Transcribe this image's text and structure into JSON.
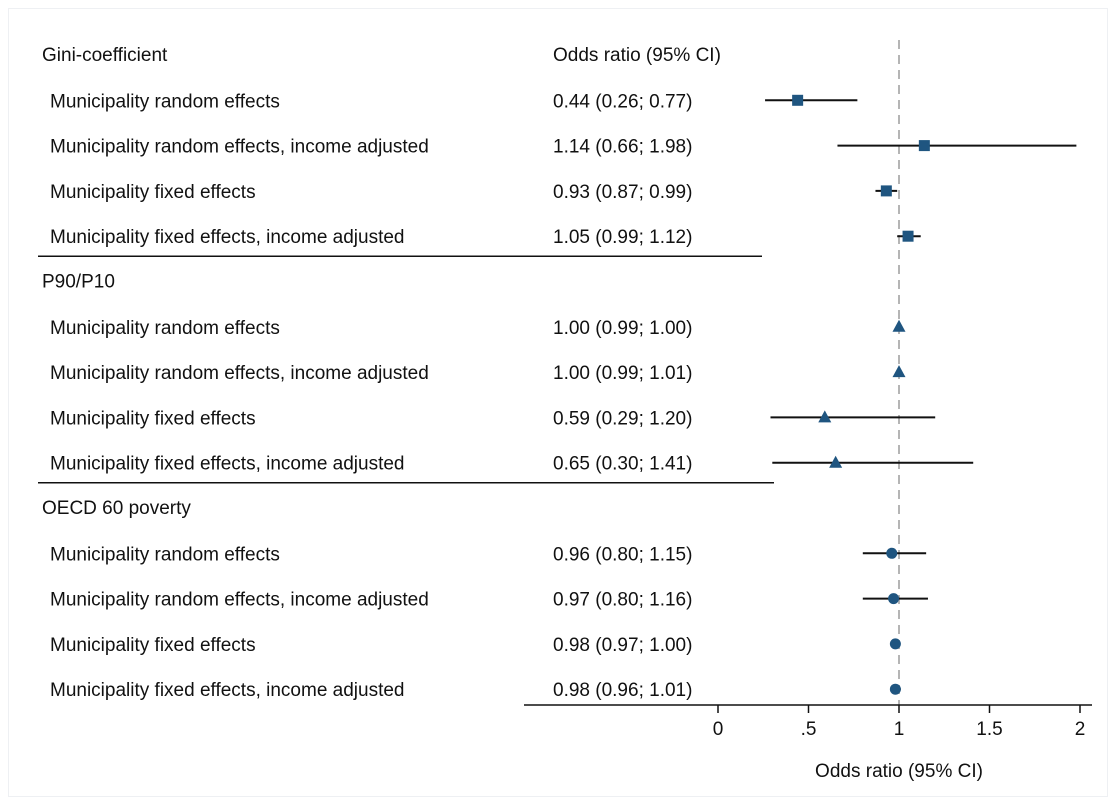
{
  "chart_data": {
    "type": "forest",
    "col_header": "Odds ratio (95% CI)",
    "xlabel": "Odds ratio (95% CI)",
    "xlim": [
      0,
      2
    ],
    "ticks": [
      0,
      0.5,
      1,
      1.5,
      2
    ],
    "tick_labels": [
      "0",
      ".5",
      "1",
      "1.5",
      "2"
    ],
    "reference_line": 1,
    "marker_color": "#1f5580",
    "groups": [
      {
        "label": "Gini-coefficient",
        "marker": "square",
        "rows": [
          {
            "label": "Municipality random effects",
            "or": 0.44,
            "lo": 0.26,
            "hi": 0.77,
            "text": "0.44 (0.26; 0.77)"
          },
          {
            "label": "Municipality random effects, income adjusted",
            "or": 1.14,
            "lo": 0.66,
            "hi": 1.98,
            "text": "1.14 (0.66; 1.98)"
          },
          {
            "label": "Municipality fixed effects",
            "or": 0.93,
            "lo": 0.87,
            "hi": 0.99,
            "text": "0.93 (0.87; 0.99)"
          },
          {
            "label": "Municipality fixed effects, income adjusted",
            "or": 1.05,
            "lo": 0.99,
            "hi": 1.12,
            "text": "1.05 (0.99; 1.12)"
          }
        ]
      },
      {
        "label": "P90/P10",
        "marker": "triangle",
        "rows": [
          {
            "label": "Municipality random effects",
            "or": 1.0,
            "lo": 0.99,
            "hi": 1.0,
            "text": "1.00 (0.99; 1.00)"
          },
          {
            "label": "Municipality random effects, income adjusted",
            "or": 1.0,
            "lo": 0.99,
            "hi": 1.01,
            "text": "1.00 (0.99; 1.01)"
          },
          {
            "label": "Municipality fixed effects",
            "or": 0.59,
            "lo": 0.29,
            "hi": 1.2,
            "text": "0.59 (0.29; 1.20)"
          },
          {
            "label": "Municipality fixed effects, income adjusted",
            "or": 0.65,
            "lo": 0.3,
            "hi": 1.41,
            "text": "0.65 (0.30; 1.41)"
          }
        ]
      },
      {
        "label": "OECD 60 poverty",
        "marker": "circle",
        "rows": [
          {
            "label": "Municipality random effects",
            "or": 0.96,
            "lo": 0.8,
            "hi": 1.15,
            "text": "0.96 (0.80; 1.15)"
          },
          {
            "label": "Municipality random effects, income adjusted",
            "or": 0.97,
            "lo": 0.8,
            "hi": 1.16,
            "text": "0.97 (0.80; 1.16)"
          },
          {
            "label": "Municipality fixed effects",
            "or": 0.98,
            "lo": 0.97,
            "hi": 1.0,
            "text": "0.98 (0.97; 1.00)"
          },
          {
            "label": "Municipality fixed effects, income adjusted",
            "or": 0.98,
            "lo": 0.96,
            "hi": 1.01,
            "text": "0.98 (0.96; 1.01)"
          }
        ]
      }
    ]
  }
}
